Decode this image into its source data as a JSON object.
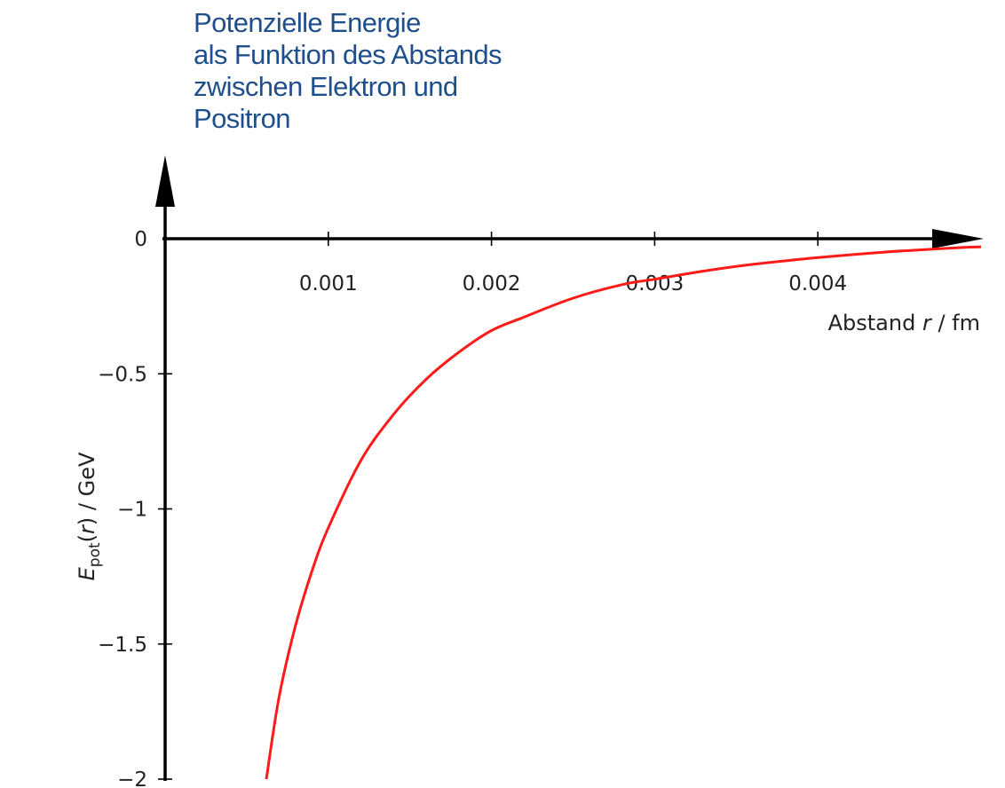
{
  "title_lines": [
    "Potenzielle Energie",
    "als Funktion des Abstands",
    "zwischen Elektron und",
    "Positron"
  ],
  "colors": {
    "title": "#1f4e8c",
    "curve": "#ff1a1a",
    "axis": "#000000"
  },
  "chart_data": {
    "type": "line",
    "title": "Potenzielle Energie als Funktion des Abstands zwischen Elektron und Positron",
    "xlabel_parts": {
      "prefix": "Abstand ",
      "var": "r",
      "unit": " / fm"
    },
    "ylabel_parts": {
      "sym": "E",
      "sub": "pot",
      "open": "(",
      "var": "r",
      "close": ")",
      "unit": " / GeV"
    },
    "xlim": [
      0,
      0.005
    ],
    "ylim": [
      -2,
      0.25
    ],
    "x_ticks": [
      {
        "value": 0.001,
        "label": "0.001"
      },
      {
        "value": 0.002,
        "label": "0.002"
      },
      {
        "value": 0.003,
        "label": "0.003"
      },
      {
        "value": 0.004,
        "label": "0.004"
      }
    ],
    "y_ticks": [
      {
        "value": 0,
        "label": "0"
      },
      {
        "value": -0.5,
        "label": "−0.5"
      },
      {
        "value": -1,
        "label": "−1"
      },
      {
        "value": -1.5,
        "label": "−1.5"
      },
      {
        "value": -2,
        "label": "−2"
      }
    ],
    "grid": false,
    "series": [
      {
        "color": "#ff1a1a",
        "x": [
          0.00062,
          0.0007,
          0.0008,
          0.0009,
          0.001,
          0.0012,
          0.0014,
          0.0016,
          0.0018,
          0.002,
          0.0022,
          0.0025,
          0.0028,
          0.003,
          0.0033,
          0.0036,
          0.004,
          0.0044,
          0.0048,
          0.005
        ],
        "y": [
          -2.0,
          -1.69,
          -1.43,
          -1.23,
          -1.07,
          -0.82,
          -0.65,
          -0.52,
          -0.42,
          -0.34,
          -0.29,
          -0.22,
          -0.17,
          -0.15,
          -0.12,
          -0.095,
          -0.07,
          -0.05,
          -0.035,
          -0.03
        ]
      }
    ]
  }
}
